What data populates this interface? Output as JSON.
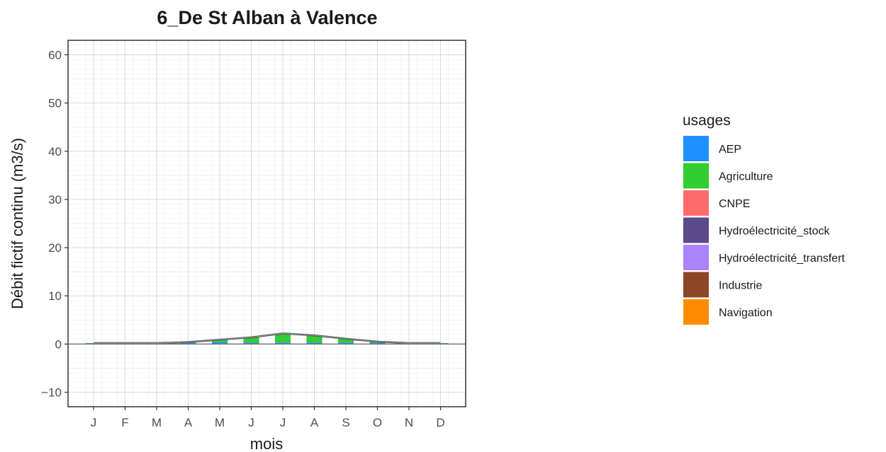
{
  "chart_data": {
    "type": "bar",
    "title": "6_De St Alban à Valence",
    "xlabel": "mois",
    "ylabel": "Débit fictif continu (m3/s)",
    "categories": [
      "J",
      "F",
      "M",
      "A",
      "M",
      "J",
      "J",
      "A",
      "S",
      "O",
      "N",
      "D"
    ],
    "ylim": [
      -13,
      63
    ],
    "yticks": [
      -10,
      0,
      10,
      20,
      30,
      40,
      50,
      60
    ],
    "grid": true,
    "stacked": true,
    "legend": {
      "title": "usages",
      "position": "right"
    },
    "series": [
      {
        "name": "AEP",
        "color": "#1E90FF",
        "values": [
          0.2,
          0.2,
          0.2,
          0.3,
          0.4,
          0.3,
          0.3,
          0.3,
          0.3,
          0.3,
          0.2,
          0.2
        ]
      },
      {
        "name": "Agriculture",
        "color": "#32CD32",
        "values": [
          0.0,
          0.0,
          0.0,
          0.1,
          0.5,
          1.1,
          1.8,
          1.5,
          0.8,
          0.2,
          0.0,
          0.0
        ]
      },
      {
        "name": "CNPE",
        "color": "#FF6A6A",
        "values": [
          0.0,
          0.0,
          0.0,
          0.0,
          0.0,
          0.0,
          0.0,
          0.0,
          0.0,
          0.0,
          0.0,
          0.0
        ]
      },
      {
        "name": "Hydroélectricité_stock",
        "color": "#5B4A8B",
        "values": [
          0.0,
          0.0,
          0.0,
          0.0,
          0.0,
          0.0,
          0.0,
          0.0,
          0.0,
          0.0,
          0.0,
          0.0
        ]
      },
      {
        "name": "Hydroélectricité_transfert",
        "color": "#AB82FF",
        "values": [
          0.0,
          0.0,
          0.0,
          0.0,
          0.0,
          0.0,
          0.0,
          0.0,
          0.0,
          0.0,
          0.0,
          0.0
        ]
      },
      {
        "name": "Industrie",
        "color": "#8B4726",
        "values": [
          0.0,
          0.0,
          0.0,
          0.0,
          0.0,
          0.0,
          0.0,
          0.0,
          0.0,
          0.0,
          0.0,
          0.0
        ]
      },
      {
        "name": "Navigation",
        "color": "#FF8C00",
        "values": [
          0.0,
          0.0,
          0.0,
          0.0,
          0.0,
          0.0,
          0.0,
          0.0,
          0.0,
          0.0,
          0.0,
          0.0
        ]
      }
    ],
    "total_line": [
      0.2,
      0.2,
      0.2,
      0.4,
      0.9,
      1.4,
      2.2,
      1.8,
      1.1,
      0.5,
      0.2,
      0.2
    ]
  }
}
